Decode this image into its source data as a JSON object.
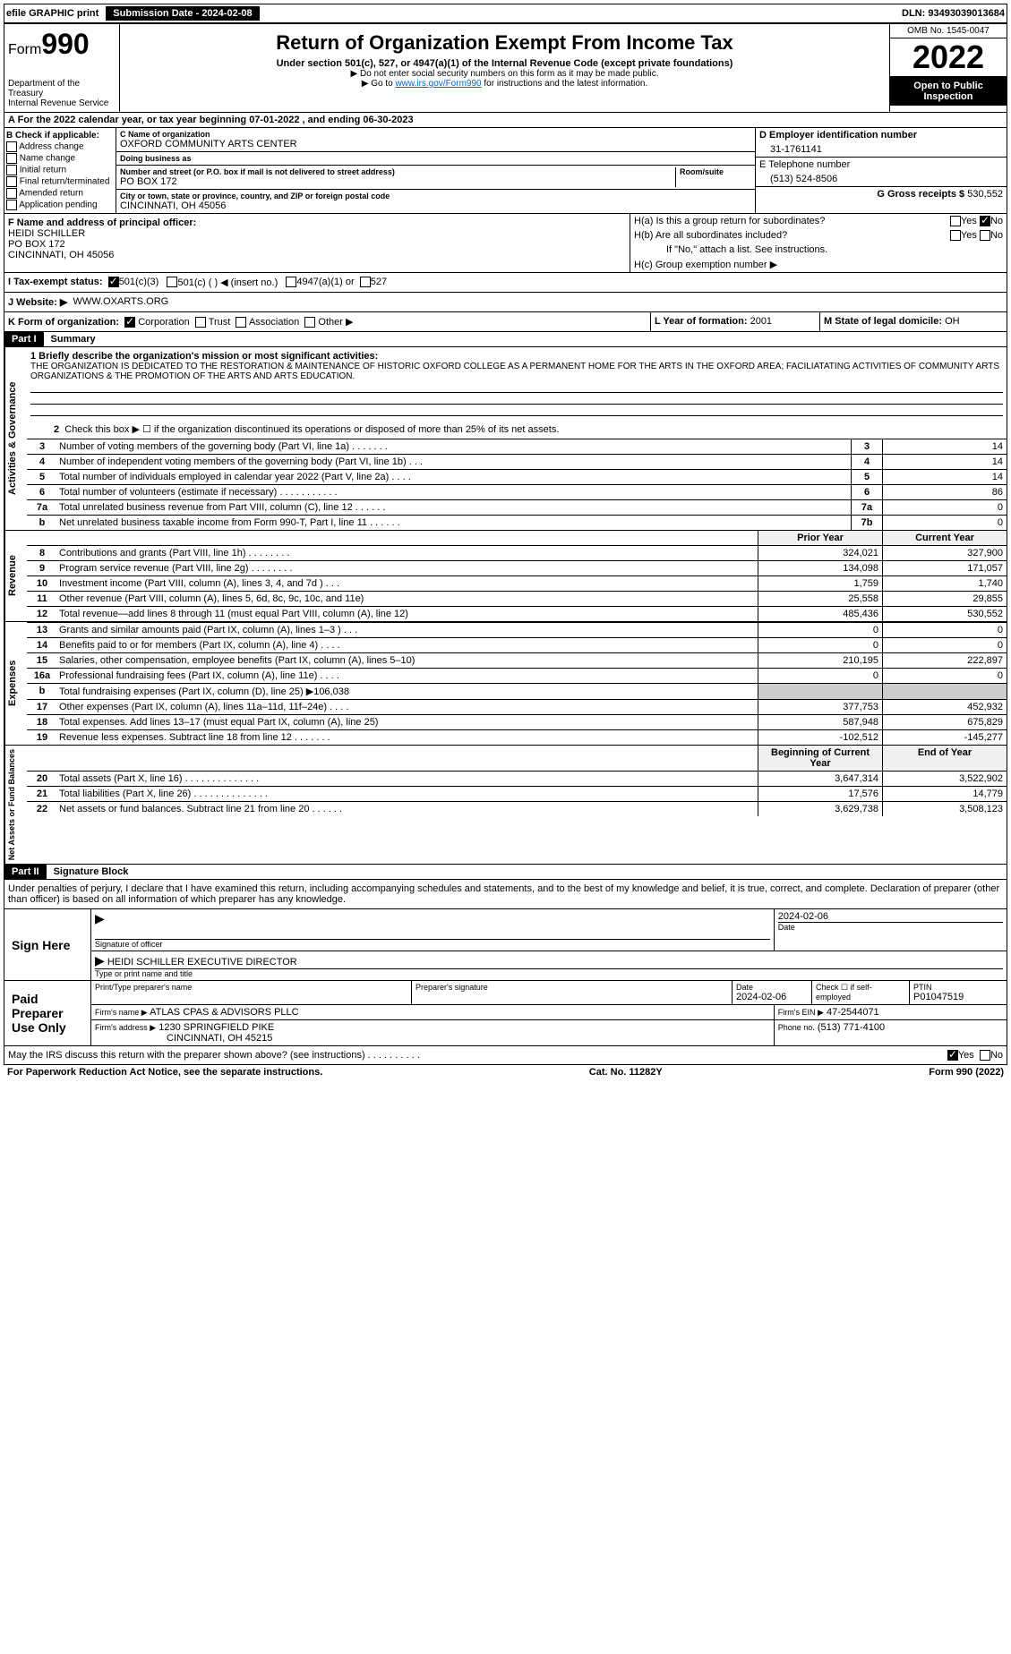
{
  "topbar": {
    "efile": "efile GRAPHIC print",
    "submission_label": "Submission Date - 2024-02-08",
    "dln": "DLN: 93493039013684"
  },
  "header": {
    "form_prefix": "Form",
    "form_number": "990",
    "dept1": "Department of the Treasury",
    "dept2": "Internal Revenue Service",
    "title": "Return of Organization Exempt From Income Tax",
    "subtitle": "Under section 501(c), 527, or 4947(a)(1) of the Internal Revenue Code (except private foundations)",
    "note1": "▶ Do not enter social security numbers on this form as it may be made public.",
    "note2_pre": "▶ Go to ",
    "note2_link": "www.irs.gov/Form990",
    "note2_post": " for instructions and the latest information.",
    "omb": "OMB No. 1545-0047",
    "year": "2022",
    "open": "Open to Public Inspection"
  },
  "section_a": "A For the 2022 calendar year, or tax year beginning 07-01-2022    , and ending 06-30-2023",
  "box_b": {
    "label": "B Check if applicable:",
    "items": [
      "Address change",
      "Name change",
      "Initial return",
      "Final return/terminated",
      "Amended return",
      "Application pending"
    ]
  },
  "box_c": {
    "name_label": "C Name of organization",
    "name": "OXFORD COMMUNITY ARTS CENTER",
    "dba_label": "Doing business as",
    "dba": "",
    "addr_label": "Number and street (or P.O. box if mail is not delivered to street address)",
    "room_label": "Room/suite",
    "addr": "PO BOX 172",
    "city_label": "City or town, state or province, country, and ZIP or foreign postal code",
    "city": "CINCINNATI, OH  45056"
  },
  "box_d": {
    "label": "D Employer identification number",
    "value": "31-1761141"
  },
  "box_e": {
    "label": "E Telephone number",
    "value": "(513) 524-8506"
  },
  "box_g": {
    "label": "G Gross receipts $",
    "value": "530,552"
  },
  "box_f": {
    "label": "F Name and address of principal officer:",
    "name": "HEIDI SCHILLER",
    "addr1": "PO BOX 172",
    "addr2": "CINCINNATI, OH  45056"
  },
  "box_h": {
    "a_label": "H(a)  Is this a group return for subordinates?",
    "b_label": "H(b)  Are all subordinates included?",
    "b_note": "If \"No,\" attach a list. See instructions.",
    "c_label": "H(c)  Group exemption number ▶",
    "yes": "Yes",
    "no": "No"
  },
  "box_i": {
    "label": "I  Tax-exempt status:",
    "opt1": "501(c)(3)",
    "opt2": "501(c) (  ) ◀ (insert no.)",
    "opt3": "4947(a)(1) or",
    "opt4": "527"
  },
  "box_j": {
    "label": "J  Website: ▶",
    "value": "WWW.OXARTS.ORG"
  },
  "box_k": {
    "label": "K Form of organization:",
    "opts": [
      "Corporation",
      "Trust",
      "Association",
      "Other ▶"
    ]
  },
  "box_l": {
    "label": "L Year of formation:",
    "value": "2001"
  },
  "box_m": {
    "label": "M State of legal domicile:",
    "value": "OH"
  },
  "part1": {
    "header": "Part I",
    "title": "Summary",
    "line1_label": "1  Briefly describe the organization's mission or most significant activities:",
    "mission": "THE ORGANIZATION IS DEDICATED TO THE RESTORATION & MAINTENANCE OF HISTORIC OXFORD COLLEGE AS A PERMANENT HOME FOR THE ARTS IN THE OXFORD AREA; FACILIATATING ACTIVITIES OF COMMUNITY ARTS ORGANIZATIONS & THE PROMOTION OF THE ARTS AND ARTS EDUCATION.",
    "line2": "Check this box ▶ ☐  if the organization discontinued its operations or disposed of more than 25% of its net assets.",
    "gov_label": "Activities & Governance",
    "rev_label": "Revenue",
    "exp_label": "Expenses",
    "net_label": "Net Assets or Fund Balances",
    "prior_year": "Prior Year",
    "current_year": "Current Year",
    "begin_year": "Beginning of Current Year",
    "end_year": "End of Year",
    "lines_gov": [
      {
        "n": "3",
        "text": "Number of voting members of the governing body (Part VI, line 1a)   .    .    .    .    .    .    .",
        "box": "3",
        "val": "14"
      },
      {
        "n": "4",
        "text": "Number of independent voting members of the governing body (Part VI, line 1b)    .    .    .",
        "box": "4",
        "val": "14"
      },
      {
        "n": "5",
        "text": "Total number of individuals employed in calendar year 2022 (Part V, line 2a)    .    .    .    .",
        "box": "5",
        "val": "14"
      },
      {
        "n": "6",
        "text": "Total number of volunteers (estimate if necessary)    .    .    .    .    .    .    .    .    .    .    .",
        "box": "6",
        "val": "86"
      },
      {
        "n": "7a",
        "text": "Total unrelated business revenue from Part VIII, column (C), line 12    .    .    .    .    .    .",
        "box": "7a",
        "val": "0"
      },
      {
        "n": "b",
        "text": "Net unrelated business taxable income from Form 990-T, Part I, line 11    .    .    .    .    .    .",
        "box": "7b",
        "val": "0"
      }
    ],
    "lines_rev": [
      {
        "n": "8",
        "text": "Contributions and grants (Part VIII, line 1h)    .    .    .    .    .    .    .    .",
        "prior": "324,021",
        "curr": "327,900"
      },
      {
        "n": "9",
        "text": "Program service revenue (Part VIII, line 2g)    .    .    .    .    .    .    .    .",
        "prior": "134,098",
        "curr": "171,057"
      },
      {
        "n": "10",
        "text": "Investment income (Part VIII, column (A), lines 3, 4, and 7d )    .    .    .",
        "prior": "1,759",
        "curr": "1,740"
      },
      {
        "n": "11",
        "text": "Other revenue (Part VIII, column (A), lines 5, 6d, 8c, 9c, 10c, and 11e)",
        "prior": "25,558",
        "curr": "29,855"
      },
      {
        "n": "12",
        "text": "Total revenue—add lines 8 through 11 (must equal Part VIII, column (A), line 12)",
        "prior": "485,436",
        "curr": "530,552"
      }
    ],
    "lines_exp": [
      {
        "n": "13",
        "text": "Grants and similar amounts paid (Part IX, column (A), lines 1–3 )    .    .    .",
        "prior": "0",
        "curr": "0"
      },
      {
        "n": "14",
        "text": "Benefits paid to or for members (Part IX, column (A), line 4)    .    .    .    .",
        "prior": "0",
        "curr": "0"
      },
      {
        "n": "15",
        "text": "Salaries, other compensation, employee benefits (Part IX, column (A), lines 5–10)",
        "prior": "210,195",
        "curr": "222,897"
      },
      {
        "n": "16a",
        "text": "Professional fundraising fees (Part IX, column (A), line 11e)    .    .    .    .",
        "prior": "0",
        "curr": "0"
      },
      {
        "n": "b",
        "text": "Total fundraising expenses (Part IX, column (D), line 25) ▶106,038",
        "prior": "",
        "curr": "",
        "shaded": true
      },
      {
        "n": "17",
        "text": "Other expenses (Part IX, column (A), lines 11a–11d, 11f–24e)    .    .    .    .",
        "prior": "377,753",
        "curr": "452,932"
      },
      {
        "n": "18",
        "text": "Total expenses. Add lines 13–17 (must equal Part IX, column (A), line 25)",
        "prior": "587,948",
        "curr": "675,829"
      },
      {
        "n": "19",
        "text": "Revenue less expenses. Subtract line 18 from line 12    .    .    .    .    .    .    .",
        "prior": "-102,512",
        "curr": "-145,277"
      }
    ],
    "lines_net": [
      {
        "n": "20",
        "text": "Total assets (Part X, line 16)    .    .    .    .    .    .    .    .    .    .    .    .    .    .",
        "prior": "3,647,314",
        "curr": "3,522,902"
      },
      {
        "n": "21",
        "text": "Total liabilities (Part X, line 26)    .    .    .    .    .    .    .    .    .    .    .    .    .    .",
        "prior": "17,576",
        "curr": "14,779"
      },
      {
        "n": "22",
        "text": "Net assets or fund balances. Subtract line 21 from line 20    .    .    .    .    .    .",
        "prior": "3,629,738",
        "curr": "3,508,123"
      }
    ]
  },
  "part2": {
    "header": "Part II",
    "title": "Signature Block",
    "penalty": "Under penalties of perjury, I declare that I have examined this return, including accompanying schedules and statements, and to the best of my knowledge and belief, it is true, correct, and complete. Declaration of preparer (other than officer) is based on all information of which preparer has any knowledge.",
    "sign_here": "Sign Here",
    "sig_officer": "Signature of officer",
    "sig_date": "2024-02-06",
    "date_label": "Date",
    "name_title": "HEIDI SCHILLER  EXECUTIVE DIRECTOR",
    "name_label": "Type or print name and title",
    "paid": "Paid Preparer Use Only",
    "prep_name_label": "Print/Type preparer's name",
    "prep_name": "",
    "prep_sig_label": "Preparer's signature",
    "prep_date_label": "Date",
    "prep_date": "2024-02-06",
    "check_self": "Check ☐ if self-employed",
    "ptin_label": "PTIN",
    "ptin": "P01047519",
    "firm_name_label": "Firm's name    ▶",
    "firm_name": "ATLAS CPAS & ADVISORS PLLC",
    "firm_ein_label": "Firm's EIN ▶",
    "firm_ein": "47-2544071",
    "firm_addr_label": "Firm's address ▶",
    "firm_addr1": "1230 SPRINGFIELD PIKE",
    "firm_addr2": "CINCINNATI, OH  45215",
    "phone_label": "Phone no.",
    "phone": "(513) 771-4100",
    "discuss": "May the IRS discuss this return with the preparer shown above? (see instructions)    .    .    .    .    .    .    .    .    .    .",
    "yes": "Yes",
    "no": "No"
  },
  "footer": {
    "left": "For Paperwork Reduction Act Notice, see the separate instructions.",
    "center": "Cat. No. 11282Y",
    "right": "Form 990 (2022)"
  }
}
